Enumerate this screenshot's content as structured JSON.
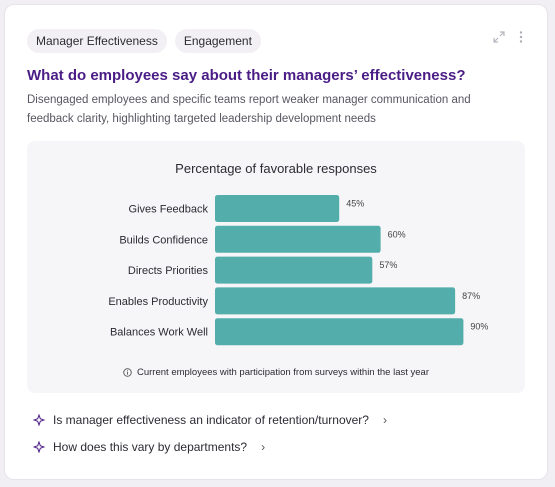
{
  "tags": [
    "Manager Effectiveness",
    "Engagement"
  ],
  "card": {
    "title": "What do employees say about their managers’ effectiveness?",
    "subtitle": "Disengaged employees and specific teams report weaker manager communication and feedback clarity, highlighting targeted leadership development needs",
    "expand_icon": "expand-icon",
    "more_icon": "more-vertical-icon"
  },
  "chart_data": {
    "type": "bar",
    "orientation": "horizontal",
    "title": "Percentage of favorable responses",
    "categories": [
      "Gives Feedback",
      "Builds Confidence",
      "Directs Priorities",
      "Enables Productivity",
      "Balances Work Well"
    ],
    "values": [
      45,
      60,
      57,
      87,
      90
    ],
    "value_labels": [
      "45%",
      "60%",
      "57%",
      "87%",
      "90%"
    ],
    "xlim": [
      0,
      100
    ],
    "xlabel": "",
    "ylabel": "",
    "grid": false,
    "legend": "none",
    "bar_color": "#52adab"
  },
  "footnote": "Current employees with participation from surveys within the last year",
  "suggestions": [
    "Is manager effectiveness an indicator of retention/turnover?",
    "How does this vary by departments?"
  ],
  "colors": {
    "title": "#4a1d86",
    "accent": "#52adab",
    "tag_bg": "#f2f0f4"
  }
}
